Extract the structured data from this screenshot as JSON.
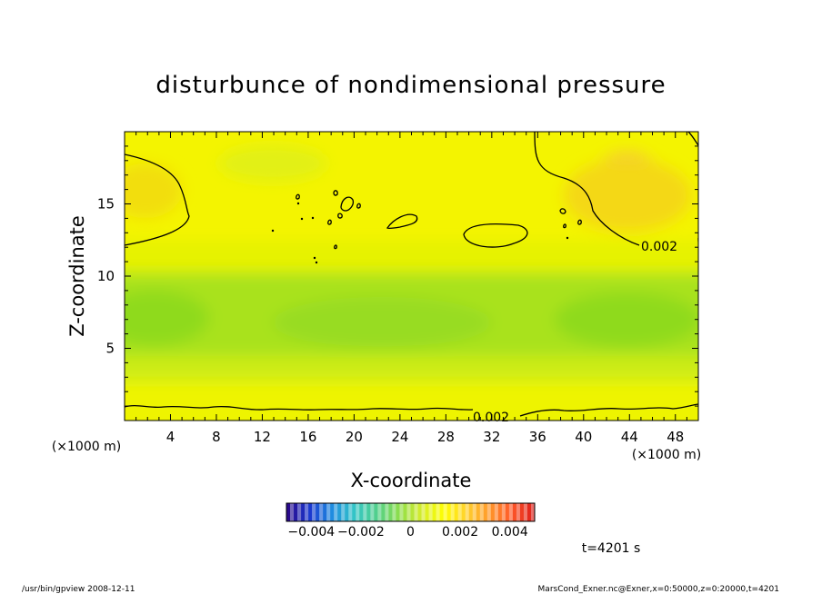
{
  "chart_data": {
    "type": "heatmap",
    "title": "disturbunce of nondimensional pressure",
    "xlabel": "X-coordinate",
    "ylabel": "Z-coordinate",
    "x_unit": "(×1000 m)",
    "y_unit": "(×1000 m)",
    "xlim": [
      0,
      50
    ],
    "ylim": [
      0,
      20
    ],
    "x_ticks": [
      4,
      8,
      12,
      16,
      20,
      24,
      28,
      32,
      36,
      40,
      44,
      48
    ],
    "x_tick_labels": [
      "4",
      "8",
      "12",
      "16",
      "20",
      "24",
      "28",
      "32",
      "36",
      "40",
      "44",
      "48"
    ],
    "y_ticks": [
      5,
      10,
      15
    ],
    "y_tick_labels": [
      "5",
      "10",
      "15"
    ],
    "contour_labels": [
      "0.002",
      "0.002"
    ],
    "colorbar": {
      "min": -0.005,
      "max": 0.005,
      "tick_values": [
        -0.004,
        -0.002,
        0,
        0.002,
        0.004
      ],
      "tick_labels": [
        "−0.004",
        "−0.002",
        "0",
        "0.002",
        "0.004"
      ],
      "colors": [
        "#2a0a8c",
        "#1a3ad0",
        "#1f8fe0",
        "#34c6c6",
        "#52d08a",
        "#8ede4a",
        "#d6ec2c",
        "#ffff00",
        "#ffd22e",
        "#ff9a2a",
        "#ff5b2a",
        "#e0201a"
      ]
    },
    "time_label": "t=4201 s",
    "z_range": [
      0.0014,
      0.0034
    ]
  },
  "footer": {
    "left": "/usr/bin/gpview   2008-12-11",
    "right": "MarsCond_Exner.nc@Exner,x=0:50000,z=0:20000,t=4201"
  }
}
